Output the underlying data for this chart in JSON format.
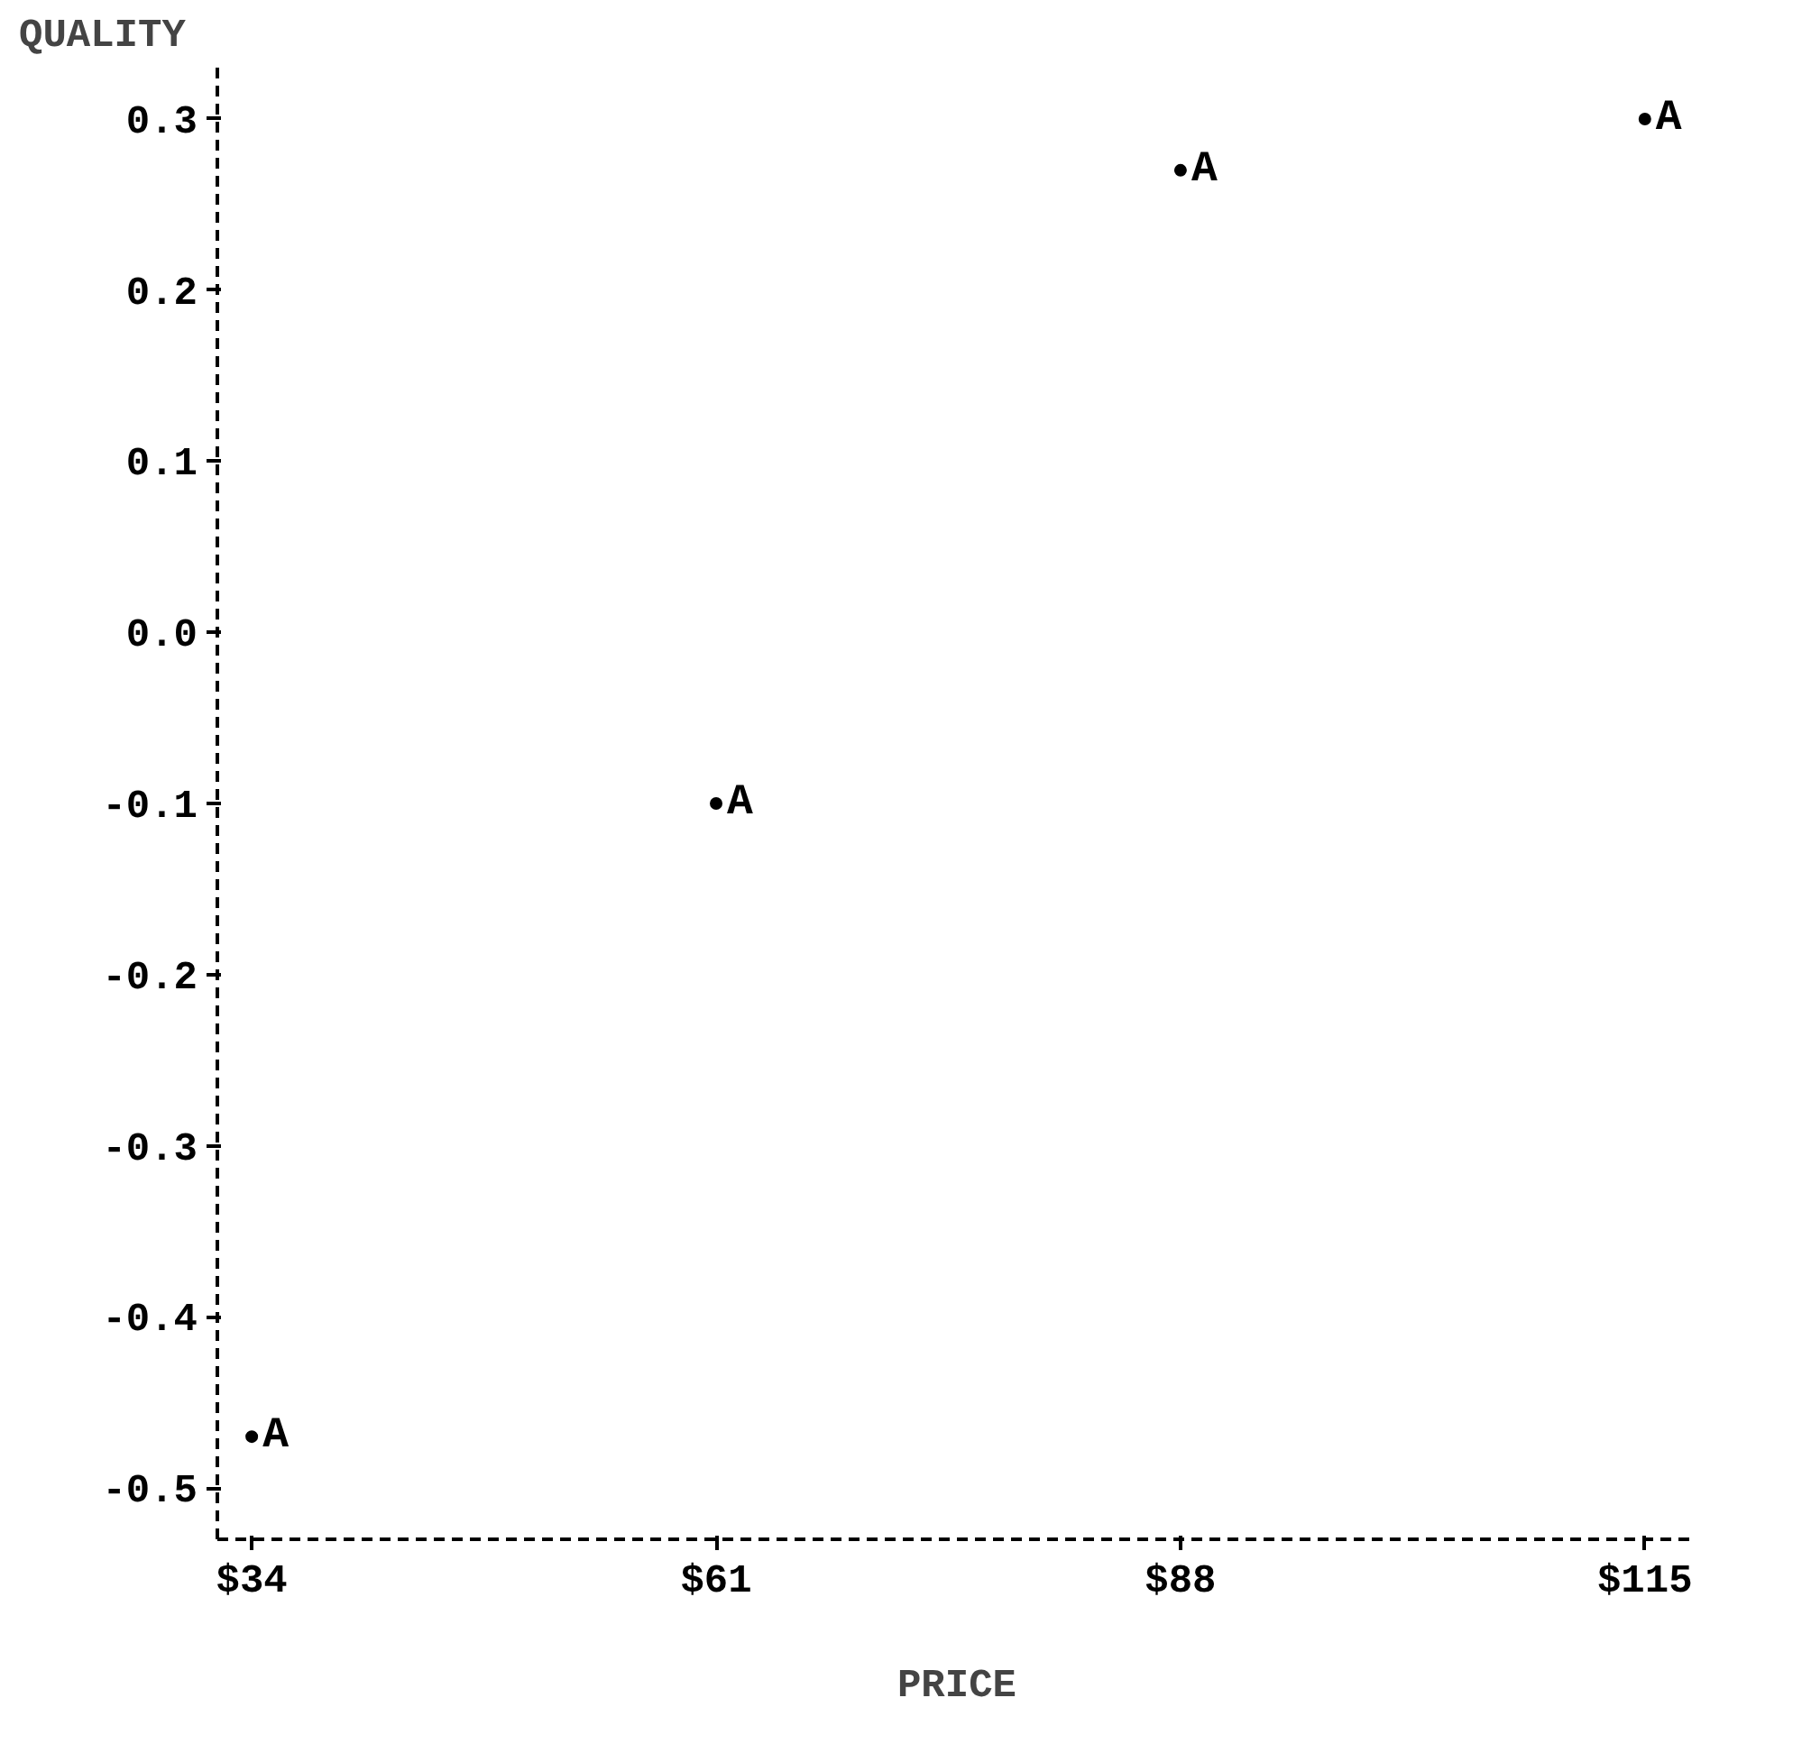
{
  "chart_data": {
    "type": "scatter",
    "xlabel": "PRICE",
    "ylabel": "QUALITY",
    "x": [
      34,
      61,
      88,
      115
    ],
    "series": [
      {
        "name": "A",
        "color": "#000000",
        "values": [
          -0.47,
          -0.1,
          0.27,
          0.3
        ]
      }
    ],
    "xlim": [
      32,
      118
    ],
    "ylim": [
      -0.53,
      0.33
    ],
    "xticks": [
      {
        "value": 34,
        "label": "$34"
      },
      {
        "value": 61,
        "label": "$61"
      },
      {
        "value": 88,
        "label": "$88"
      },
      {
        "value": 115,
        "label": "$115"
      }
    ],
    "yticks": [
      {
        "value": 0.3,
        "label": "0.3"
      },
      {
        "value": 0.2,
        "label": "0.2"
      },
      {
        "value": 0.1,
        "label": "0.1"
      },
      {
        "value": 0.0,
        "label": "0.0"
      },
      {
        "value": -0.1,
        "label": "-0.1"
      },
      {
        "value": -0.2,
        "label": "-0.2"
      },
      {
        "value": -0.3,
        "label": "-0.3"
      },
      {
        "value": -0.4,
        "label": "-0.4"
      },
      {
        "value": -0.5,
        "label": "-0.5"
      }
    ],
    "grid": false,
    "marker": "circle",
    "line_style": "dashed"
  }
}
